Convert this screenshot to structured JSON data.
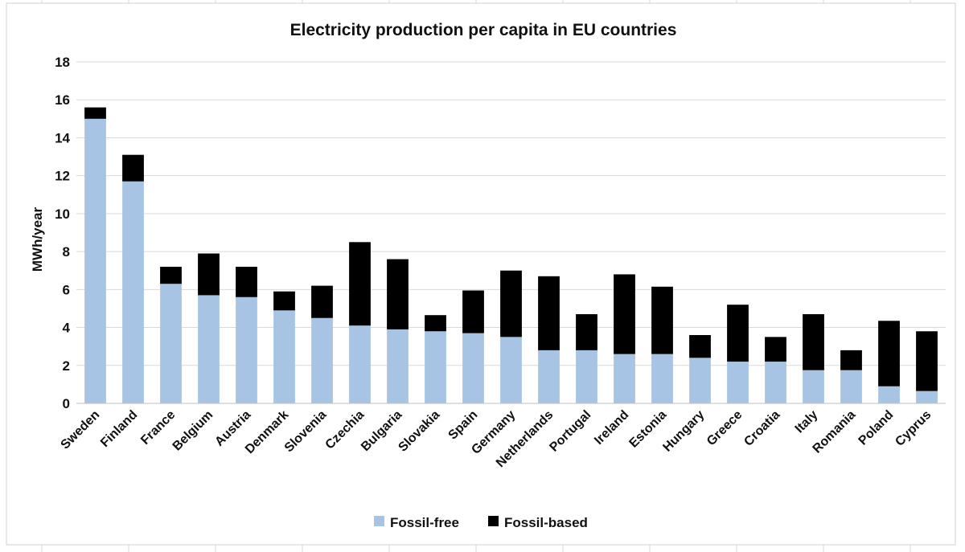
{
  "chart_data": {
    "type": "bar",
    "stacked": true,
    "title": "Electricity production per capita in EU countries",
    "ylabel": "MWh/year",
    "xlabel": "",
    "ylim": [
      0,
      18
    ],
    "yticks": [
      0,
      2,
      4,
      6,
      8,
      10,
      12,
      14,
      16,
      18
    ],
    "grid": "horizontal",
    "legend_position": "bottom",
    "categories": [
      "Sweden",
      "Finland",
      "France",
      "Belgium",
      "Austria",
      "Denmark",
      "Slovenia",
      "Czechia",
      "Bulgaria",
      "Slovakia",
      "Spain",
      "Germany",
      "Netherlands",
      "Portugal",
      "Ireland",
      "Estonia",
      "Hungary",
      "Greece",
      "Croatia",
      "Italy",
      "Romania",
      "Poland",
      "Cyprus"
    ],
    "series": [
      {
        "name": "Fossil-free",
        "color": "#a8c4e4",
        "values": [
          15.0,
          11.7,
          6.3,
          5.7,
          5.6,
          4.9,
          4.5,
          4.1,
          3.9,
          3.8,
          3.7,
          3.5,
          2.8,
          2.8,
          2.6,
          2.6,
          2.4,
          2.2,
          2.2,
          1.75,
          1.75,
          0.9,
          0.65
        ]
      },
      {
        "name": "Fossil-based",
        "color": "#000000",
        "values": [
          0.6,
          1.4,
          0.9,
          2.2,
          1.6,
          1.0,
          1.7,
          4.4,
          3.7,
          0.85,
          2.25,
          3.5,
          3.9,
          1.9,
          4.2,
          3.55,
          1.2,
          3.0,
          1.3,
          2.95,
          1.05,
          3.45,
          3.15
        ]
      }
    ]
  }
}
